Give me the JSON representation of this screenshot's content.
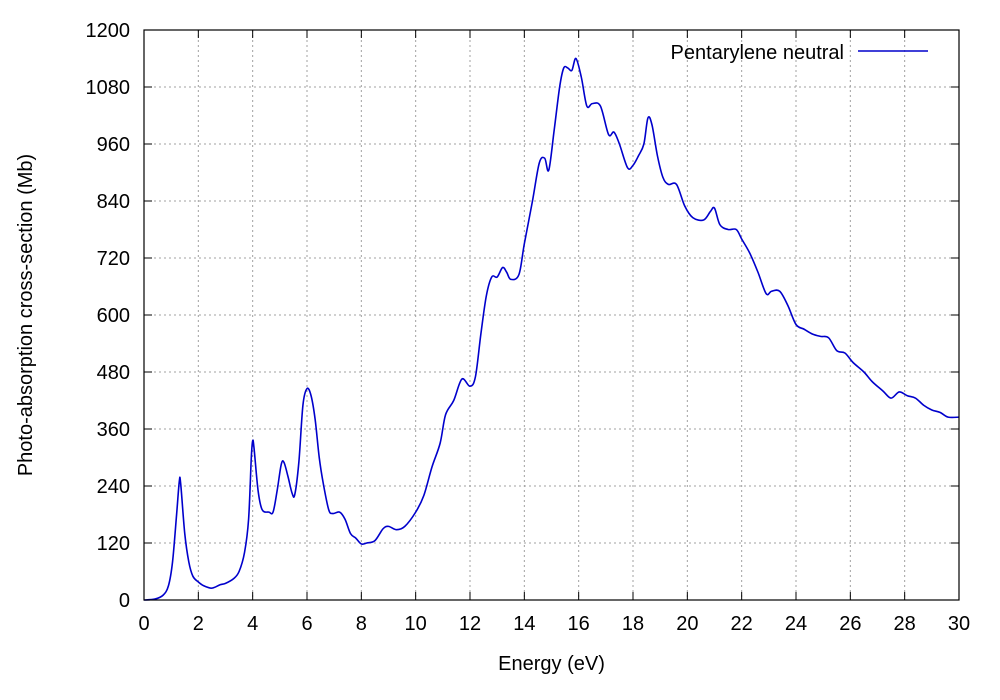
{
  "chart_data": {
    "type": "line",
    "title": "",
    "xlabel": "Energy (eV)",
    "ylabel": "Photo-absorption cross-section (Mb)",
    "xlim": [
      0,
      30
    ],
    "ylim": [
      0,
      1200
    ],
    "x_ticks": [
      0,
      2,
      4,
      6,
      8,
      10,
      12,
      14,
      16,
      18,
      20,
      22,
      24,
      26,
      28,
      30
    ],
    "y_ticks": [
      0,
      120,
      240,
      360,
      480,
      600,
      720,
      840,
      960,
      1080,
      1200
    ],
    "grid": true,
    "legend_position": "top-right",
    "series": [
      {
        "name": "Pentarylene neutral",
        "color": "#0000cc",
        "points": [
          [
            0,
            0
          ],
          [
            0.4,
            2
          ],
          [
            0.7,
            10
          ],
          [
            0.9,
            30
          ],
          [
            1.05,
            80
          ],
          [
            1.2,
            180
          ],
          [
            1.3,
            250
          ],
          [
            1.35,
            245
          ],
          [
            1.5,
            140
          ],
          [
            1.65,
            80
          ],
          [
            1.8,
            50
          ],
          [
            2.0,
            38
          ],
          [
            2.2,
            30
          ],
          [
            2.5,
            25
          ],
          [
            2.8,
            32
          ],
          [
            3.0,
            35
          ],
          [
            3.3,
            45
          ],
          [
            3.5,
            60
          ],
          [
            3.7,
            100
          ],
          [
            3.85,
            170
          ],
          [
            3.95,
            300
          ],
          [
            4.0,
            335
          ],
          [
            4.05,
            320
          ],
          [
            4.2,
            230
          ],
          [
            4.35,
            190
          ],
          [
            4.6,
            185
          ],
          [
            4.75,
            185
          ],
          [
            4.9,
            230
          ],
          [
            5.05,
            285
          ],
          [
            5.15,
            290
          ],
          [
            5.3,
            260
          ],
          [
            5.45,
            225
          ],
          [
            5.55,
            222
          ],
          [
            5.7,
            290
          ],
          [
            5.85,
            410
          ],
          [
            6.0,
            445
          ],
          [
            6.15,
            430
          ],
          [
            6.3,
            380
          ],
          [
            6.45,
            300
          ],
          [
            6.6,
            245
          ],
          [
            6.8,
            190
          ],
          [
            6.95,
            182
          ],
          [
            7.2,
            185
          ],
          [
            7.4,
            170
          ],
          [
            7.6,
            140
          ],
          [
            7.8,
            130
          ],
          [
            8.0,
            118
          ],
          [
            8.2,
            120
          ],
          [
            8.5,
            125
          ],
          [
            8.8,
            150
          ],
          [
            9.0,
            155
          ],
          [
            9.3,
            148
          ],
          [
            9.6,
            155
          ],
          [
            10.0,
            185
          ],
          [
            10.3,
            220
          ],
          [
            10.6,
            280
          ],
          [
            10.9,
            330
          ],
          [
            11.1,
            390
          ],
          [
            11.4,
            420
          ],
          [
            11.7,
            465
          ],
          [
            12.0,
            450
          ],
          [
            12.2,
            470
          ],
          [
            12.4,
            560
          ],
          [
            12.6,
            640
          ],
          [
            12.8,
            680
          ],
          [
            13.0,
            680
          ],
          [
            13.2,
            700
          ],
          [
            13.35,
            690
          ],
          [
            13.5,
            675
          ],
          [
            13.8,
            685
          ],
          [
            14.0,
            750
          ],
          [
            14.3,
            840
          ],
          [
            14.55,
            920
          ],
          [
            14.75,
            930
          ],
          [
            14.9,
            905
          ],
          [
            15.1,
            990
          ],
          [
            15.3,
            1080
          ],
          [
            15.45,
            1120
          ],
          [
            15.6,
            1120
          ],
          [
            15.75,
            1115
          ],
          [
            15.9,
            1140
          ],
          [
            16.1,
            1100
          ],
          [
            16.3,
            1040
          ],
          [
            16.5,
            1045
          ],
          [
            16.8,
            1040
          ],
          [
            17.1,
            980
          ],
          [
            17.3,
            985
          ],
          [
            17.5,
            960
          ],
          [
            17.8,
            910
          ],
          [
            18.0,
            915
          ],
          [
            18.2,
            935
          ],
          [
            18.4,
            960
          ],
          [
            18.55,
            1015
          ],
          [
            18.7,
            1000
          ],
          [
            18.9,
            935
          ],
          [
            19.1,
            890
          ],
          [
            19.3,
            875
          ],
          [
            19.6,
            875
          ],
          [
            19.9,
            830
          ],
          [
            20.2,
            805
          ],
          [
            20.6,
            800
          ],
          [
            20.85,
            818
          ],
          [
            21.0,
            825
          ],
          [
            21.2,
            790
          ],
          [
            21.5,
            780
          ],
          [
            21.8,
            780
          ],
          [
            22.0,
            760
          ],
          [
            22.3,
            730
          ],
          [
            22.6,
            690
          ],
          [
            22.9,
            645
          ],
          [
            23.1,
            650
          ],
          [
            23.4,
            650
          ],
          [
            23.7,
            620
          ],
          [
            24.0,
            580
          ],
          [
            24.3,
            570
          ],
          [
            24.6,
            560
          ],
          [
            24.9,
            555
          ],
          [
            25.2,
            552
          ],
          [
            25.5,
            525
          ],
          [
            25.8,
            520
          ],
          [
            26.1,
            500
          ],
          [
            26.5,
            480
          ],
          [
            26.8,
            460
          ],
          [
            27.2,
            440
          ],
          [
            27.5,
            425
          ],
          [
            27.8,
            438
          ],
          [
            28.1,
            430
          ],
          [
            28.4,
            425
          ],
          [
            28.7,
            410
          ],
          [
            29.0,
            400
          ],
          [
            29.3,
            395
          ],
          [
            29.6,
            385
          ],
          [
            30.0,
            385
          ]
        ]
      }
    ]
  }
}
